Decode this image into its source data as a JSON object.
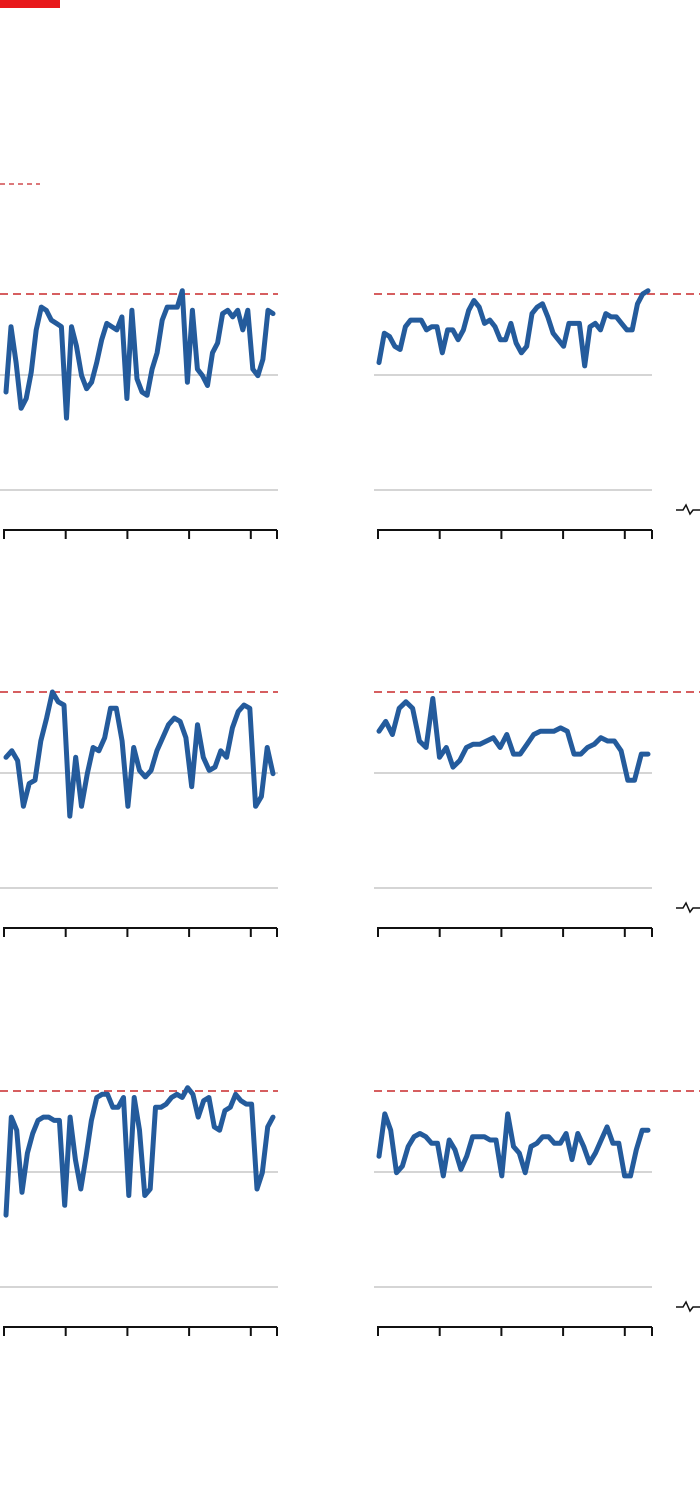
{
  "colors": {
    "accent": "#e8191b",
    "series": "#245b9c",
    "reference": "#c8282b",
    "gridline": "#d5d5d5",
    "axis": "#111111"
  },
  "legend": {
    "symbol": "break-icon",
    "icon": "line-break-icon"
  },
  "chart_data": [
    {
      "type": "line",
      "title": "",
      "xlabel": "",
      "ylabel": "",
      "grid": true,
      "reference_value": 100,
      "x_ticks": 5,
      "series": [
        {
          "values": [
            70,
            90,
            79,
            65,
            68,
            76,
            89,
            96,
            95,
            92,
            91,
            90,
            62,
            90,
            84,
            75,
            71,
            73,
            79,
            86,
            91,
            90,
            89,
            93,
            68,
            95,
            74,
            70,
            69,
            77,
            82,
            92,
            96,
            96,
            96,
            101,
            73,
            95,
            77,
            75,
            72,
            82,
            85,
            94,
            95,
            93,
            95,
            89,
            95,
            77,
            75,
            80,
            95,
            94
          ]
        }
      ]
    },
    {
      "type": "line",
      "title": "",
      "xlabel": "",
      "ylabel": "",
      "grid": true,
      "reference_value": 100,
      "x_ticks": 5,
      "series": [
        {
          "values": [
            79,
            88,
            87,
            84,
            83,
            90,
            92,
            92,
            92,
            89,
            90,
            90,
            82,
            89,
            89,
            86,
            89,
            95,
            98,
            96,
            91,
            92,
            90,
            86,
            86,
            91,
            85,
            82,
            84,
            94,
            96,
            97,
            93,
            88,
            86,
            84,
            91,
            91,
            91,
            78,
            90,
            91,
            89,
            94,
            93,
            93,
            91,
            89,
            89,
            97,
            100,
            101
          ]
        }
      ]
    },
    {
      "type": "line",
      "title": "",
      "xlabel": "",
      "ylabel": "",
      "grid": true,
      "reference_value": 100,
      "x_ticks": 5,
      "series": [
        {
          "values": [
            80,
            82,
            79,
            65,
            72,
            73,
            85,
            92,
            100,
            97,
            96,
            62,
            80,
            65,
            75,
            83,
            82,
            86,
            95,
            95,
            85,
            65,
            83,
            76,
            74,
            76,
            82,
            86,
            90,
            92,
            91,
            86,
            71,
            90,
            80,
            76,
            77,
            82,
            80,
            89,
            94,
            96,
            95,
            65,
            68,
            83,
            75
          ]
        }
      ]
    },
    {
      "type": "line",
      "title": "",
      "xlabel": "",
      "ylabel": "",
      "grid": true,
      "reference_value": 100,
      "x_ticks": 5,
      "series": [
        {
          "values": [
            88,
            91,
            87,
            95,
            97,
            95,
            85,
            83,
            98,
            80,
            83,
            77,
            79,
            83,
            84,
            84,
            85,
            86,
            83,
            87,
            81,
            81,
            84,
            87,
            88,
            88,
            88,
            89,
            88,
            81,
            81,
            83,
            84,
            86,
            85,
            85,
            82,
            73,
            73,
            81,
            81
          ]
        }
      ]
    },
    {
      "type": "line",
      "title": "",
      "xlabel": "",
      "ylabel": "",
      "grid": true,
      "reference_value": 100,
      "x_ticks": 5,
      "series": [
        {
          "values": [
            62,
            92,
            88,
            69,
            81,
            87,
            91,
            92,
            92,
            91,
            91,
            65,
            92,
            79,
            70,
            80,
            91,
            98,
            99,
            99,
            95,
            95,
            98,
            68,
            98,
            88,
            68,
            70,
            95,
            95,
            96,
            98,
            99,
            98,
            101,
            99,
            92,
            97,
            98,
            89,
            88,
            94,
            95,
            99,
            97,
            96,
            96,
            70,
            75,
            89,
            92
          ]
        }
      ]
    },
    {
      "type": "line",
      "title": "",
      "xlabel": "",
      "ylabel": "",
      "grid": true,
      "reference_value": 100,
      "x_ticks": 5,
      "series": [
        {
          "values": [
            80,
            93,
            88,
            75,
            77,
            83,
            86,
            87,
            86,
            84,
            84,
            74,
            85,
            82,
            76,
            80,
            86,
            86,
            86,
            85,
            85,
            74,
            93,
            83,
            81,
            75,
            83,
            84,
            86,
            86,
            84,
            84,
            87,
            79,
            87,
            83,
            78,
            81,
            85,
            89,
            84,
            84,
            74,
            74,
            82,
            88,
            88
          ]
        }
      ]
    }
  ]
}
